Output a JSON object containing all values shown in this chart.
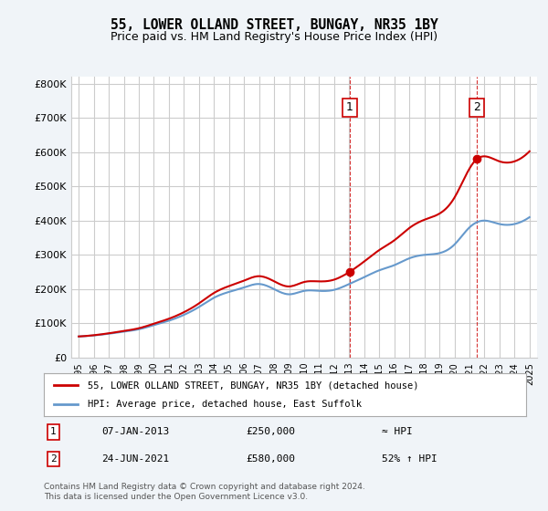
{
  "title": "55, LOWER OLLAND STREET, BUNGAY, NR35 1BY",
  "subtitle": "Price paid vs. HM Land Registry's House Price Index (HPI)",
  "legend_line1": "55, LOWER OLLAND STREET, BUNGAY, NR35 1BY (detached house)",
  "legend_line2": "HPI: Average price, detached house, East Suffolk",
  "annotation1_num": "1",
  "annotation1_date": "07-JAN-2013",
  "annotation1_price": "£250,000",
  "annotation1_hpi": "≈ HPI",
  "annotation2_num": "2",
  "annotation2_date": "24-JUN-2021",
  "annotation2_price": "£580,000",
  "annotation2_hpi": "52% ↑ HPI",
  "footnote1": "Contains HM Land Registry data © Crown copyright and database right 2024.",
  "footnote2": "This data is licensed under the Open Government Licence v3.0.",
  "red_color": "#cc0000",
  "blue_color": "#6699cc",
  "dashed_red": "#cc0000",
  "bg_color": "#f0f4f8",
  "plot_bg": "#ffffff",
  "grid_color": "#cccccc",
  "ylim_max": 820000,
  "ylim_min": 0,
  "hpi_years": [
    1995,
    1996,
    1997,
    1998,
    1999,
    2000,
    2001,
    2002,
    2003,
    2004,
    2005,
    2006,
    2007,
    2008,
    2009,
    2010,
    2011,
    2012,
    2013,
    2014,
    2015,
    2016,
    2017,
    2018,
    2019,
    2020,
    2021,
    2022,
    2023,
    2024,
    2025
  ],
  "hpi_values": [
    62000,
    65000,
    70000,
    76000,
    83000,
    95000,
    108000,
    125000,
    148000,
    175000,
    192000,
    205000,
    215000,
    200000,
    185000,
    195000,
    195000,
    198000,
    215000,
    235000,
    255000,
    270000,
    290000,
    300000,
    305000,
    330000,
    380000,
    400000,
    390000,
    390000,
    410000
  ],
  "price_years": [
    2013.03,
    2021.48
  ],
  "price_values": [
    250000,
    580000
  ],
  "xticks": [
    1995,
    1996,
    1997,
    1998,
    1999,
    2000,
    2001,
    2002,
    2003,
    2004,
    2005,
    2006,
    2007,
    2008,
    2009,
    2010,
    2011,
    2012,
    2013,
    2014,
    2015,
    2016,
    2017,
    2018,
    2019,
    2020,
    2021,
    2022,
    2023,
    2024,
    2025
  ]
}
